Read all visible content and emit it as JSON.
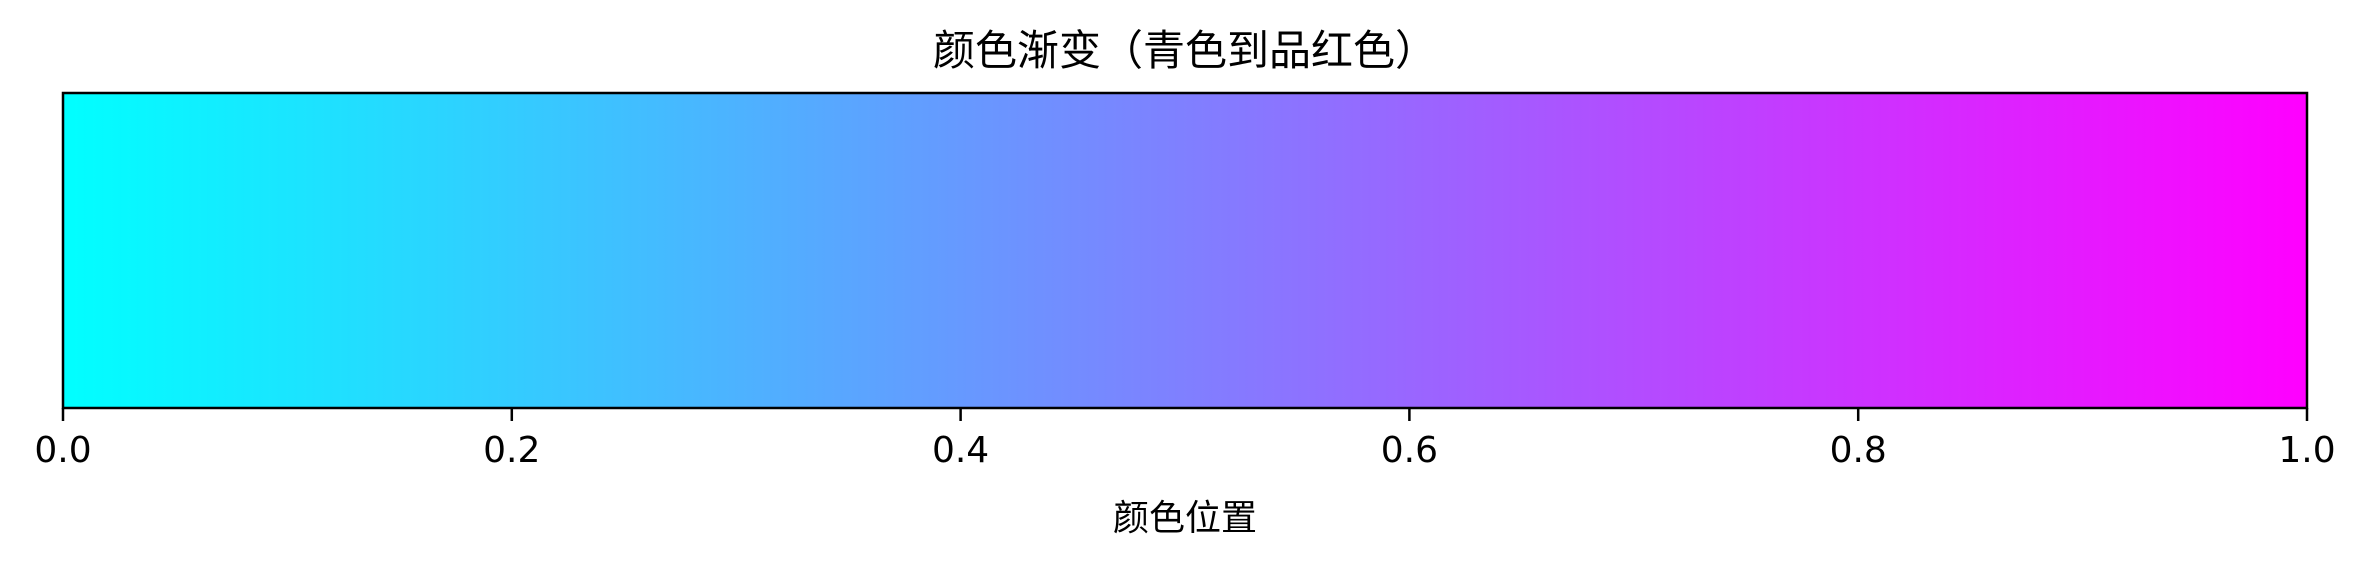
{
  "chart_data": {
    "type": "heatmap",
    "title": "颜色渐变（青色到品红色）",
    "xlabel": "颜色位置",
    "ylabel": "",
    "xlim": [
      0,
      1
    ],
    "x_ticks": [
      0.0,
      0.2,
      0.4,
      0.6,
      0.8,
      1.0
    ],
    "x_tick_labels": [
      "0.0",
      "0.2",
      "0.4",
      "0.6",
      "0.8",
      "1.0"
    ],
    "y_ticks": [],
    "grid": false,
    "legend": "none",
    "colormap": "cool",
    "gradient_stops": [
      {
        "position": 0.0,
        "color": "#00ffff"
      },
      {
        "position": 1.0,
        "color": "#ff00ff"
      }
    ]
  }
}
